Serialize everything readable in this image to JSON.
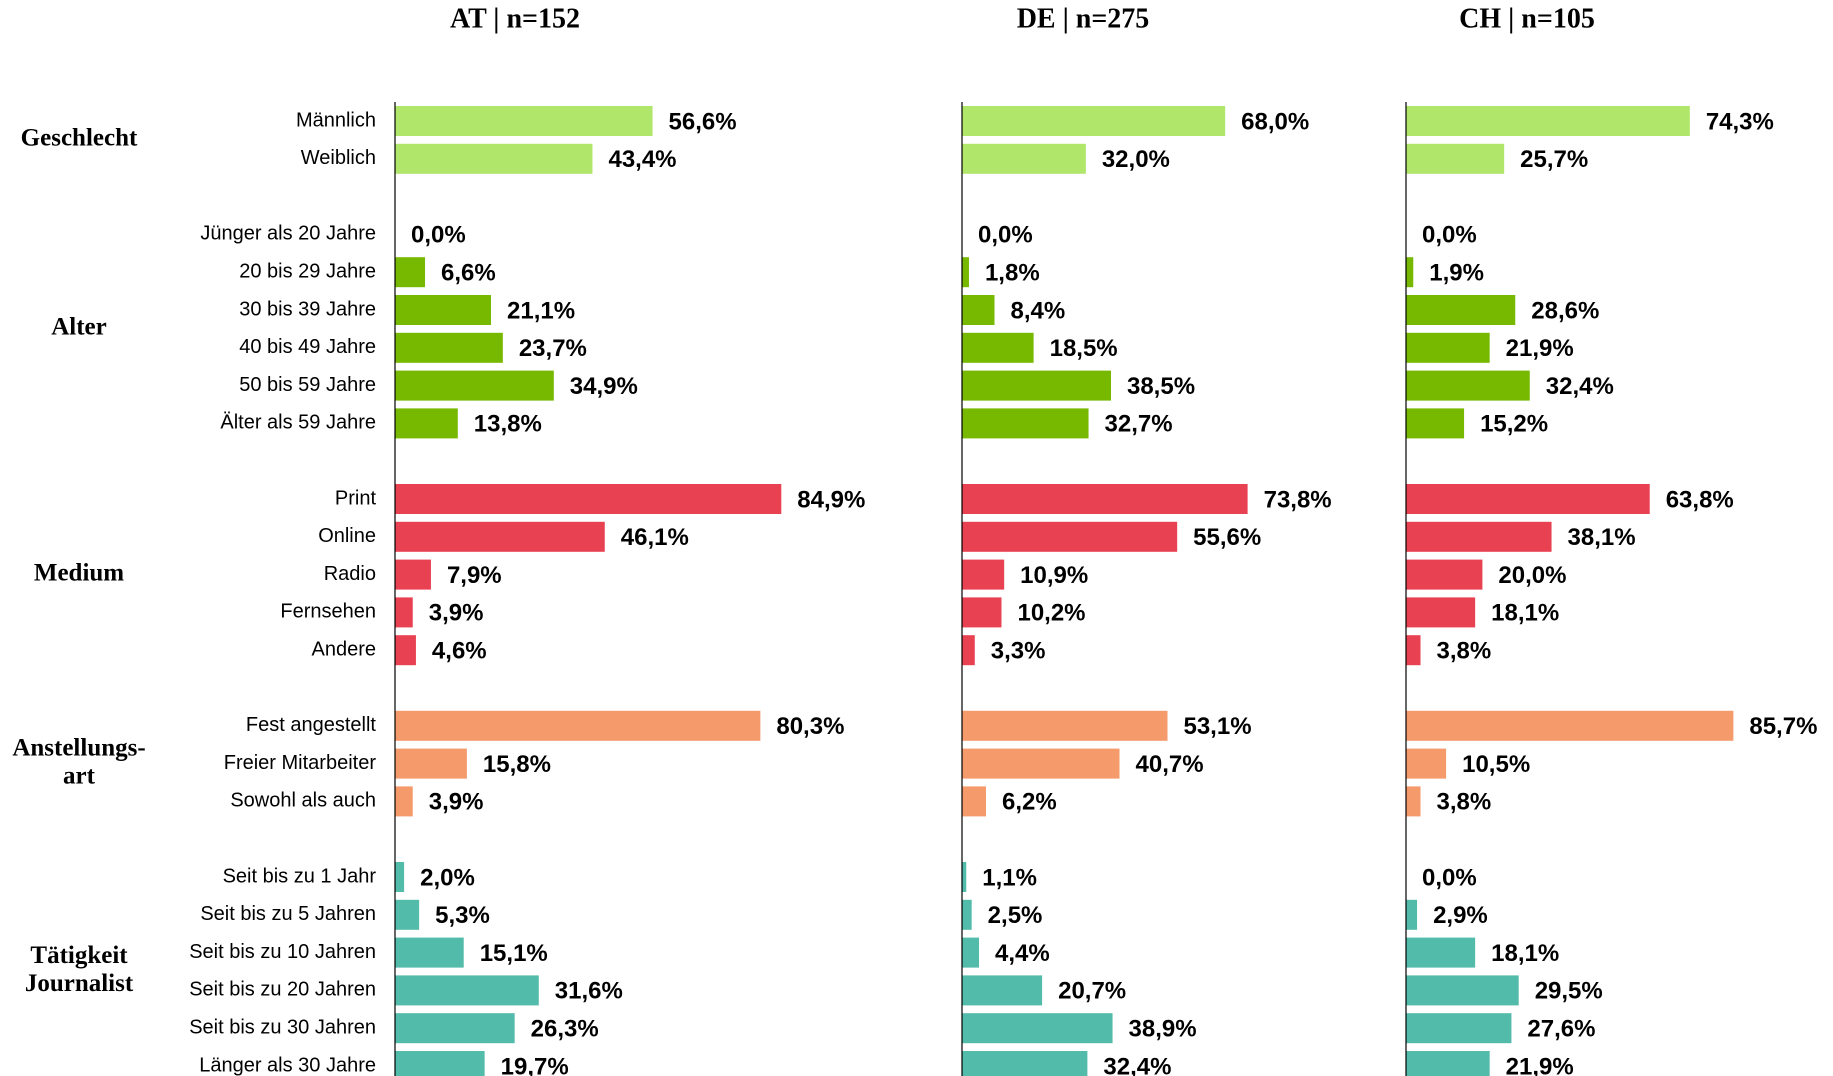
{
  "groups": [
    {
      "label": [
        "Geschlecht"
      ],
      "color": "#b0e66a",
      "categories": [
        "Männlich",
        "Weiblich"
      ]
    },
    {
      "label": [
        "Alter"
      ],
      "color": "#76b900",
      "categories": [
        "Jünger als 20 Jahre",
        "20 bis 29 Jahre",
        "30 bis 39 Jahre",
        "40 bis 49 Jahre",
        "50 bis 59 Jahre",
        "Älter als 59 Jahre"
      ]
    },
    {
      "label": [
        "Medium"
      ],
      "color": "#e84152",
      "categories": [
        "Print",
        "Online",
        "Radio",
        "Fernsehen",
        "Andere"
      ]
    },
    {
      "label": [
        "Anstellungs-",
        "art"
      ],
      "color": "#f59a6b",
      "categories": [
        "Fest angestellt",
        "Freier Mitarbeiter",
        "Sowohl als auch"
      ]
    },
    {
      "label": [
        "Tätigkeit",
        "Journalist"
      ],
      "color": "#52bba9",
      "categories": [
        "Seit bis zu 1 Jahr",
        "Seit bis zu 5 Jahren",
        "Seit bis zu 10 Jahren",
        "Seit bis zu 20 Jahren",
        "Seit bis zu 30 Jahren",
        "Länger als 30 Jahre"
      ]
    }
  ],
  "chart_data": [
    {
      "type": "bar",
      "orientation": "horizontal",
      "title": "AT | n=152",
      "xlim": [
        0,
        100
      ],
      "values": [
        56.6,
        43.4,
        0,
        6.6,
        21.1,
        23.7,
        34.9,
        13.8,
        84.9,
        46.1,
        7.9,
        3.9,
        4.6,
        80.3,
        15.8,
        3.9,
        2.0,
        5.3,
        15.1,
        31.6,
        26.3,
        19.7
      ],
      "value_labels": [
        "56,6%",
        "43,4%",
        "0,0%",
        "6,6%",
        "21,1%",
        "23,7%",
        "34,9%",
        "13,8%",
        "84,9%",
        "46,1%",
        "7,9%",
        "3,9%",
        "4,6%",
        "80,3%",
        "15,8%",
        "3,9%",
        "2,0%",
        "5,3%",
        "15,1%",
        "31,6%",
        "26,3%",
        "19,7%"
      ]
    },
    {
      "type": "bar",
      "orientation": "horizontal",
      "title": "DE | n=275",
      "xlim": [
        0,
        100
      ],
      "values": [
        68.0,
        32.0,
        0.0,
        1.8,
        8.4,
        18.5,
        38.5,
        32.7,
        73.8,
        55.6,
        10.9,
        10.2,
        3.3,
        53.1,
        40.7,
        6.2,
        1.1,
        2.5,
        4.4,
        20.7,
        38.9,
        32.4
      ],
      "value_labels": [
        "68,0%",
        "32,0%",
        "0,0%",
        "1,8%",
        "8,4%",
        "18,5%",
        "38,5%",
        "32,7%",
        "73,8%",
        "55,6%",
        "10,9%",
        "10,2%",
        "3,3%",
        "53,1%",
        "40,7%",
        "6,2%",
        "1,1%",
        "2,5%",
        "4,4%",
        "20,7%",
        "38,9%",
        "32,4%"
      ]
    },
    {
      "type": "bar",
      "orientation": "horizontal",
      "title": "CH | n=105",
      "xlim": [
        0,
        100
      ],
      "values": [
        74.3,
        25.7,
        0.0,
        1.9,
        28.6,
        21.9,
        32.4,
        15.2,
        63.8,
        38.1,
        20.0,
        18.1,
        3.8,
        85.7,
        10.5,
        3.8,
        0.0,
        2.9,
        18.1,
        29.5,
        27.6,
        21.9
      ],
      "value_labels": [
        "74,3%",
        "25,7%",
        "0,0%",
        "1,9%",
        "28,6%",
        "21,9%",
        "32,4%",
        "15,2%",
        "63,8%",
        "38,1%",
        "20,0%",
        "18,1%",
        "3,8%",
        "85,7%",
        "10,5%",
        "3,8%",
        "0,0%",
        "2,9%",
        "18,1%",
        "29,5%",
        "27,6%",
        "21,9%"
      ]
    }
  ]
}
